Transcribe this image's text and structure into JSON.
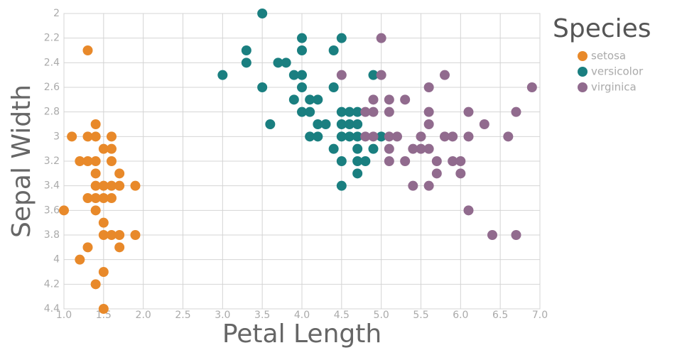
{
  "chart_data": {
    "type": "scatter",
    "x_label": "Petal Length",
    "y_label": "Sepal Width",
    "legend_title": "Species",
    "xlim": [
      1,
      7
    ],
    "xticks": [
      {
        "value": 1,
        "label": "1.0"
      },
      1.5,
      {
        "value": 2,
        "label": "2.0"
      },
      2.5,
      {
        "value": 3,
        "label": "3.0"
      },
      3.5,
      {
        "value": 4,
        "label": "4.0"
      },
      4.5,
      {
        "value": 5,
        "label": "5.0"
      },
      5.5,
      {
        "value": 6,
        "label": "6.0"
      },
      6.5,
      {
        "value": 7,
        "label": "7.0"
      }
    ],
    "ylim": [
      2,
      4.4
    ],
    "y_inverted": true,
    "yticks": [
      2,
      2.2,
      2.4,
      2.6,
      2.8,
      3,
      3.2,
      3.4,
      3.6,
      3.8,
      4,
      4.2,
      4.4
    ],
    "grid": true,
    "legend_position": "right",
    "series": [
      {
        "name": "setosa",
        "color": "#e8892a",
        "x": [
          1.3,
          1.1,
          1.3,
          1.4,
          1.6,
          1.4,
          1.5,
          1.6,
          1.2,
          1.3,
          1.4,
          1.6,
          1.4,
          1.7,
          1.4,
          1.5,
          1.6,
          1.7,
          1.9,
          1.3,
          1.4,
          1.5,
          1.6,
          1.0,
          1.4,
          1.5,
          1.5,
          1.6,
          1.7,
          1.9,
          1.3,
          1.7,
          1.2,
          1.5,
          1.4,
          1.5
        ],
        "y": [
          2.3,
          3.0,
          3.0,
          3.0,
          3.0,
          2.9,
          3.1,
          3.1,
          3.2,
          3.2,
          3.2,
          3.2,
          3.3,
          3.3,
          3.4,
          3.4,
          3.4,
          3.4,
          3.4,
          3.5,
          3.5,
          3.5,
          3.5,
          3.6,
          3.6,
          3.7,
          3.8,
          3.8,
          3.8,
          3.8,
          3.9,
          3.9,
          4.0,
          4.1,
          4.2,
          4.4
        ]
      },
      {
        "name": "versicolor",
        "color": "#1a7f80",
        "x": [
          3.5,
          4.0,
          4.5,
          3.3,
          4.0,
          4.4,
          3.3,
          3.7,
          3.8,
          3.0,
          3.9,
          4.0,
          4.9,
          3.5,
          4.0,
          4.4,
          3.9,
          4.1,
          4.2,
          4.0,
          4.1,
          4.5,
          4.6,
          4.7,
          3.6,
          4.2,
          4.3,
          4.5,
          4.6,
          4.7,
          4.1,
          4.2,
          4.5,
          4.6,
          4.7,
          5.0,
          4.4,
          4.7,
          4.9,
          4.5,
          4.7,
          4.8,
          4.7,
          4.5
        ],
        "y": [
          2.0,
          2.2,
          2.2,
          2.3,
          2.3,
          2.3,
          2.4,
          2.4,
          2.4,
          2.5,
          2.5,
          2.5,
          2.5,
          2.6,
          2.6,
          2.6,
          2.7,
          2.7,
          2.7,
          2.8,
          2.8,
          2.8,
          2.8,
          2.8,
          2.9,
          2.9,
          2.9,
          2.9,
          2.9,
          2.9,
          3.0,
          3.0,
          3.0,
          3.0,
          3.0,
          3.0,
          3.1,
          3.1,
          3.1,
          3.2,
          3.2,
          3.2,
          3.3,
          3.4
        ]
      },
      {
        "name": "virginica",
        "color": "#916b8e",
        "x": [
          5.0,
          4.5,
          5.0,
          5.8,
          5.6,
          6.9,
          4.9,
          5.1,
          5.3,
          4.8,
          4.9,
          5.1,
          5.6,
          6.1,
          6.7,
          5.6,
          6.3,
          4.8,
          4.9,
          5.1,
          5.2,
          5.5,
          5.8,
          5.9,
          6.1,
          6.6,
          5.1,
          5.4,
          5.5,
          5.6,
          5.1,
          5.3,
          5.7,
          5.9,
          6.0,
          5.7,
          6.0,
          5.4,
          5.6,
          6.1,
          6.4,
          6.7
        ],
        "y": [
          2.2,
          2.5,
          2.5,
          2.5,
          2.6,
          2.6,
          2.7,
          2.7,
          2.7,
          2.8,
          2.8,
          2.8,
          2.8,
          2.8,
          2.8,
          2.9,
          2.9,
          3.0,
          3.0,
          3.0,
          3.0,
          3.0,
          3.0,
          3.0,
          3.0,
          3.0,
          3.1,
          3.1,
          3.1,
          3.1,
          3.2,
          3.2,
          3.2,
          3.2,
          3.2,
          3.3,
          3.3,
          3.4,
          3.4,
          3.6,
          3.8,
          3.8
        ]
      }
    ]
  }
}
